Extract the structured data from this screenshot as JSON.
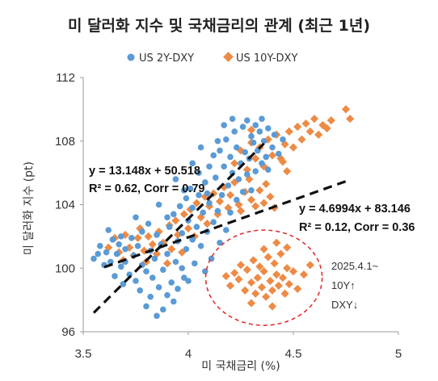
{
  "chart_data": {
    "type": "scatter",
    "title": "미 달러화 지수 및 국채금리의 관계 (최근 1년)",
    "xlabel": "미 국채금리 (%)",
    "ylabel": "미 달러화 지수 (pt)",
    "xlim": [
      3.5,
      5
    ],
    "ylim": [
      96,
      112
    ],
    "xticks": [
      "3.5",
      "4",
      "4.5",
      "5"
    ],
    "yticks": [
      "96",
      "100",
      "104",
      "108",
      "112"
    ],
    "legend_position": "top",
    "colors": {
      "blue": "#5b9bd5",
      "orange": "#ed8b46",
      "circle": "#e03030"
    },
    "series": [
      {
        "name": "US 2Y-DXY",
        "marker": "circle",
        "color": "#5b9bd5",
        "points": [
          [
            3.55,
            100.6
          ],
          [
            3.57,
            100.9
          ],
          [
            3.58,
            101.4
          ],
          [
            3.6,
            100.2
          ],
          [
            3.61,
            101.0
          ],
          [
            3.63,
            100.4
          ],
          [
            3.64,
            101.8
          ],
          [
            3.65,
            99.5
          ],
          [
            3.66,
            100.9
          ],
          [
            3.67,
            101.5
          ],
          [
            3.68,
            100.1
          ],
          [
            3.69,
            99.0
          ],
          [
            3.7,
            101.2
          ],
          [
            3.7,
            100.4
          ],
          [
            3.72,
            99.6
          ],
          [
            3.73,
            101.9
          ],
          [
            3.74,
            100.8
          ],
          [
            3.75,
            99.2
          ],
          [
            3.76,
            101.4
          ],
          [
            3.77,
            98.6
          ],
          [
            3.78,
            100.2
          ],
          [
            3.78,
            102.3
          ],
          [
            3.8,
            99.8
          ],
          [
            3.8,
            97.6
          ],
          [
            3.82,
            101.1
          ],
          [
            3.82,
            98.2
          ],
          [
            3.83,
            99.4
          ],
          [
            3.84,
            100.6
          ],
          [
            3.85,
            97.0
          ],
          [
            3.85,
            102.1
          ],
          [
            3.86,
            98.8
          ],
          [
            3.87,
            101.5
          ],
          [
            3.88,
            99.9
          ],
          [
            3.88,
            97.4
          ],
          [
            3.9,
            98.3
          ],
          [
            3.9,
            100.9
          ],
          [
            3.91,
            102.6
          ],
          [
            3.92,
            99.1
          ],
          [
            3.93,
            103.4
          ],
          [
            3.93,
            97.9
          ],
          [
            3.94,
            100.4
          ],
          [
            3.95,
            101.7
          ],
          [
            3.95,
            98.7
          ],
          [
            3.96,
            103.9
          ],
          [
            3.97,
            100.0
          ],
          [
            3.97,
            102.2
          ],
          [
            3.98,
            99.4
          ],
          [
            3.99,
            104.4
          ],
          [
            3.99,
            101.2
          ],
          [
            4.0,
            103.0
          ],
          [
            4.0,
            99.2
          ],
          [
            4.01,
            105.0
          ],
          [
            4.02,
            101.8
          ],
          [
            4.02,
            103.8
          ],
          [
            4.03,
            100.3
          ],
          [
            4.04,
            102.6
          ],
          [
            4.05,
            104.6
          ],
          [
            4.05,
            106.0
          ],
          [
            4.06,
            101.4
          ],
          [
            4.07,
            103.5
          ],
          [
            4.08,
            105.4
          ],
          [
            4.08,
            99.8
          ],
          [
            4.09,
            102.3
          ],
          [
            4.1,
            106.4
          ],
          [
            4.1,
            104.1
          ],
          [
            4.11,
            100.6
          ],
          [
            4.12,
            107.1
          ],
          [
            4.12,
            102.9
          ],
          [
            4.13,
            105.7
          ],
          [
            4.14,
            103.6
          ],
          [
            4.15,
            107.4
          ],
          [
            4.15,
            101.6
          ],
          [
            4.16,
            104.6
          ],
          [
            4.17,
            106.4
          ],
          [
            4.18,
            102.4
          ],
          [
            4.18,
            108.1
          ],
          [
            4.19,
            105.2
          ],
          [
            4.2,
            107.0
          ],
          [
            4.2,
            103.5
          ],
          [
            4.21,
            106.0
          ],
          [
            4.22,
            108.6
          ],
          [
            4.23,
            104.3
          ],
          [
            4.23,
            107.6
          ],
          [
            4.24,
            105.6
          ],
          [
            4.25,
            106.6
          ],
          [
            4.26,
            108.9
          ],
          [
            4.26,
            104.8
          ],
          [
            4.27,
            107.3
          ],
          [
            4.28,
            105.9
          ],
          [
            4.28,
            109.3
          ],
          [
            4.29,
            106.9
          ],
          [
            4.3,
            108.3
          ],
          [
            4.3,
            104.9
          ],
          [
            4.31,
            107.9
          ],
          [
            4.32,
            106.1
          ],
          [
            4.32,
            109.0
          ],
          [
            4.33,
            107.4
          ],
          [
            4.34,
            108.6
          ],
          [
            4.35,
            106.6
          ],
          [
            4.35,
            109.4
          ],
          [
            4.36,
            108.0
          ],
          [
            4.37,
            107.0
          ],
          [
            4.38,
            108.8
          ],
          [
            4.38,
            106.2
          ],
          [
            4.4,
            107.6
          ],
          [
            4.41,
            108.4
          ],
          [
            4.43,
            107.2
          ],
          [
            4.45,
            108.1
          ],
          [
            3.62,
            102.4
          ],
          [
            3.68,
            102.0
          ],
          [
            3.75,
            103.2
          ],
          [
            3.81,
            102.8
          ],
          [
            3.86,
            104.0
          ],
          [
            3.9,
            103.2
          ],
          [
            3.94,
            105.6
          ],
          [
            3.98,
            104.9
          ],
          [
            4.02,
            106.6
          ],
          [
            4.06,
            107.6
          ],
          [
            4.09,
            104.7
          ],
          [
            4.14,
            108.0
          ],
          [
            4.17,
            109.0
          ],
          [
            4.21,
            109.4
          ]
        ]
      },
      {
        "name": "US 10Y-DXY",
        "marker": "diamond",
        "color": "#ed8b46",
        "points": [
          [
            3.62,
            101.3
          ],
          [
            3.65,
            101.9
          ],
          [
            3.67,
            101.0
          ],
          [
            3.69,
            100.5
          ],
          [
            3.7,
            102.1
          ],
          [
            3.72,
            101.3
          ],
          [
            3.74,
            100.8
          ],
          [
            3.76,
            101.9
          ],
          [
            3.77,
            102.5
          ],
          [
            3.79,
            101.1
          ],
          [
            3.8,
            100.4
          ],
          [
            3.81,
            102.0
          ],
          [
            3.83,
            101.5
          ],
          [
            3.85,
            100.9
          ],
          [
            3.86,
            102.3
          ],
          [
            3.88,
            101.6
          ],
          [
            3.9,
            100.3
          ],
          [
            3.91,
            102.7
          ],
          [
            3.92,
            101.2
          ],
          [
            3.94,
            103.0
          ],
          [
            3.95,
            102.1
          ],
          [
            3.97,
            101.0
          ],
          [
            3.98,
            103.4
          ],
          [
            4.0,
            102.5
          ],
          [
            4.01,
            103.7
          ],
          [
            4.03,
            102.0
          ],
          [
            4.04,
            104.1
          ],
          [
            4.06,
            103.2
          ],
          [
            4.08,
            104.5
          ],
          [
            4.09,
            102.8
          ],
          [
            4.1,
            103.9
          ],
          [
            4.12,
            104.7
          ],
          [
            4.14,
            103.4
          ],
          [
            4.15,
            104.2
          ],
          [
            4.17,
            105.1
          ],
          [
            4.19,
            103.8
          ],
          [
            4.2,
            104.6
          ],
          [
            4.22,
            105.4
          ],
          [
            4.24,
            104.0
          ],
          [
            4.25,
            103.6
          ],
          [
            4.27,
            104.8
          ],
          [
            4.29,
            105.6
          ],
          [
            4.3,
            104.3
          ],
          [
            4.32,
            103.9
          ],
          [
            4.34,
            104.9
          ],
          [
            4.36,
            104.1
          ],
          [
            4.37,
            105.3
          ],
          [
            4.39,
            104.5
          ],
          [
            4.41,
            103.8
          ],
          [
            4.22,
            106.6
          ],
          [
            4.25,
            107.4
          ],
          [
            4.28,
            106.2
          ],
          [
            4.3,
            107.9
          ],
          [
            4.32,
            106.9
          ],
          [
            4.34,
            107.6
          ],
          [
            4.36,
            106.4
          ],
          [
            4.38,
            108.1
          ],
          [
            4.4,
            107.1
          ],
          [
            4.42,
            108.4
          ],
          [
            4.44,
            106.9
          ],
          [
            4.46,
            107.8
          ],
          [
            4.48,
            108.6
          ],
          [
            4.5,
            107.6
          ],
          [
            4.52,
            108.9
          ],
          [
            4.54,
            108.1
          ],
          [
            4.56,
            109.1
          ],
          [
            4.58,
            108.6
          ],
          [
            4.6,
            109.4
          ],
          [
            4.62,
            108.4
          ],
          [
            4.64,
            109.0
          ],
          [
            4.66,
            108.8
          ],
          [
            4.68,
            109.3
          ],
          [
            4.75,
            110.0
          ],
          [
            4.77,
            109.4
          ],
          [
            4.45,
            106.7
          ],
          [
            4.47,
            106.1
          ],
          [
            4.3,
            108.7
          ],
          [
            4.18,
            99.5
          ],
          [
            4.2,
            98.9
          ],
          [
            4.22,
            99.7
          ],
          [
            4.24,
            99.3
          ],
          [
            4.25,
            100.2
          ],
          [
            4.27,
            98.6
          ],
          [
            4.28,
            99.9
          ],
          [
            4.3,
            99.1
          ],
          [
            4.31,
            100.5
          ],
          [
            4.32,
            98.4
          ],
          [
            4.33,
            99.4
          ],
          [
            4.34,
            100.1
          ],
          [
            4.35,
            98.8
          ],
          [
            4.36,
            99.8
          ],
          [
            4.37,
            98.2
          ],
          [
            4.38,
            100.7
          ],
          [
            4.39,
            99.2
          ],
          [
            4.4,
            98.6
          ],
          [
            4.41,
            100.3
          ],
          [
            4.42,
            99.6
          ],
          [
            4.43,
            98.9
          ],
          [
            4.44,
            100.9
          ],
          [
            4.45,
            99.4
          ],
          [
            4.46,
            98.4
          ],
          [
            4.47,
            100.0
          ],
          [
            4.48,
            99.0
          ],
          [
            4.5,
            99.8
          ],
          [
            4.52,
            98.7
          ],
          [
            4.55,
            99.6
          ],
          [
            4.58,
            100.2
          ],
          [
            4.36,
            101.2
          ],
          [
            4.42,
            101.6
          ],
          [
            4.3,
            97.8
          ],
          [
            4.4,
            97.6
          ],
          [
            4.47,
            101.3
          ]
        ]
      }
    ],
    "trendlines": [
      {
        "series": "US 2Y-DXY",
        "equation": "y = 13.148x + 50.518",
        "stats": "R² = 0.62, Corr = 0.79",
        "slope": 13.148,
        "intercept": 50.518,
        "x_range": [
          3.55,
          4.36
        ]
      },
      {
        "series": "US 10Y-DXY",
        "equation": "y = 4.6994x + 83.146",
        "stats": "R² = 0.12, Corr = 0.36",
        "slope": 4.6994,
        "intercept": 83.146,
        "x_range": [
          3.6,
          4.76
        ]
      }
    ],
    "annotation": {
      "lines": [
        "2025.4.1~",
        "10Y↑",
        "DXY↓"
      ],
      "highlight_center": [
        4.36,
        99.4
      ]
    }
  }
}
